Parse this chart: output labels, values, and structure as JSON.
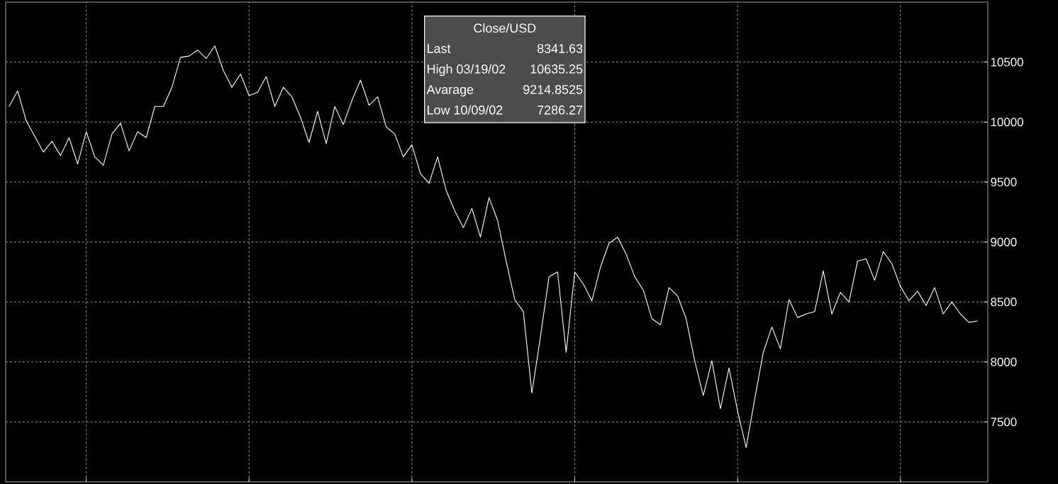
{
  "chart_data": {
    "type": "line",
    "annotations": [
      "Close/USD",
      "Last",
      "8341.63",
      "High 03/19/02",
      "10635.25",
      "Avarage",
      "9214.8525",
      "Low 10/09/02",
      "7286.27"
    ],
    "categories": [
      null,
      null,
      null,
      null,
      null,
      null,
      null,
      null,
      null,
      null,
      null,
      null,
      null,
      null,
      null,
      null,
      null,
      null,
      null,
      null,
      null,
      null,
      null,
      null,
      null,
      null,
      null,
      null,
      null,
      null,
      null,
      null,
      null,
      null,
      null,
      null,
      null,
      null,
      null,
      null,
      null,
      null,
      null,
      null,
      null,
      null,
      null,
      null,
      null,
      null,
      null,
      null,
      null,
      null,
      null,
      null,
      null,
      null,
      null,
      null,
      null,
      null,
      null,
      null,
      null,
      null,
      null,
      null,
      null,
      null,
      null,
      null,
      null,
      null,
      null,
      null,
      null,
      null,
      null,
      null,
      null,
      null,
      null,
      null,
      null,
      null,
      null,
      null,
      null,
      null,
      null,
      null,
      null,
      null,
      null,
      null,
      null,
      null,
      null,
      null,
      null,
      null,
      null,
      null,
      null,
      null,
      null,
      null,
      null,
      null,
      null,
      null,
      null,
      null
    ],
    "series": [
      {
        "color": "#ffffff",
        "values": [
          10130,
          10260,
          10010,
          9880,
          9750,
          9840,
          9720,
          9870,
          9650,
          9920,
          9710,
          9640,
          9900,
          9990,
          9760,
          9920,
          9870,
          10130,
          10130,
          10290,
          10540,
          10550,
          10600,
          10530,
          10635.25,
          10430,
          10290,
          10400,
          10220,
          10250,
          10380,
          10130,
          10290,
          10210,
          10040,
          9830,
          10090,
          9820,
          10130,
          9980,
          10180,
          10350,
          10140,
          10210,
          9960,
          9900,
          9710,
          9810,
          9570,
          9490,
          9710,
          9430,
          9260,
          9120,
          9280,
          9040,
          9370,
          9180,
          8840,
          8520,
          8420,
          7740,
          8210,
          8710,
          8750,
          8080,
          8750,
          8650,
          8510,
          8790,
          8990,
          9040,
          8900,
          8710,
          8600,
          8360,
          8310,
          8620,
          8550,
          8360,
          8010,
          7720,
          8010,
          7610,
          7950,
          7590,
          7286.27,
          7690,
          8080,
          8290,
          8110,
          8520,
          8370,
          8400,
          8420,
          8760,
          8400,
          8580,
          8500,
          8840,
          8860,
          8680,
          8920,
          8820,
          8630,
          8510,
          8590,
          8470,
          8620,
          8400,
          8500,
          8400,
          8330,
          8341.63
        ]
      }
    ],
    "ylim": [
      7000,
      11000
    ],
    "yticks": [
      7500,
      8000,
      8500,
      9000,
      9500,
      10000,
      10500
    ],
    "tick_labels": "y",
    "grid": true,
    "line_style": "solid",
    "marker": "none"
  }
}
